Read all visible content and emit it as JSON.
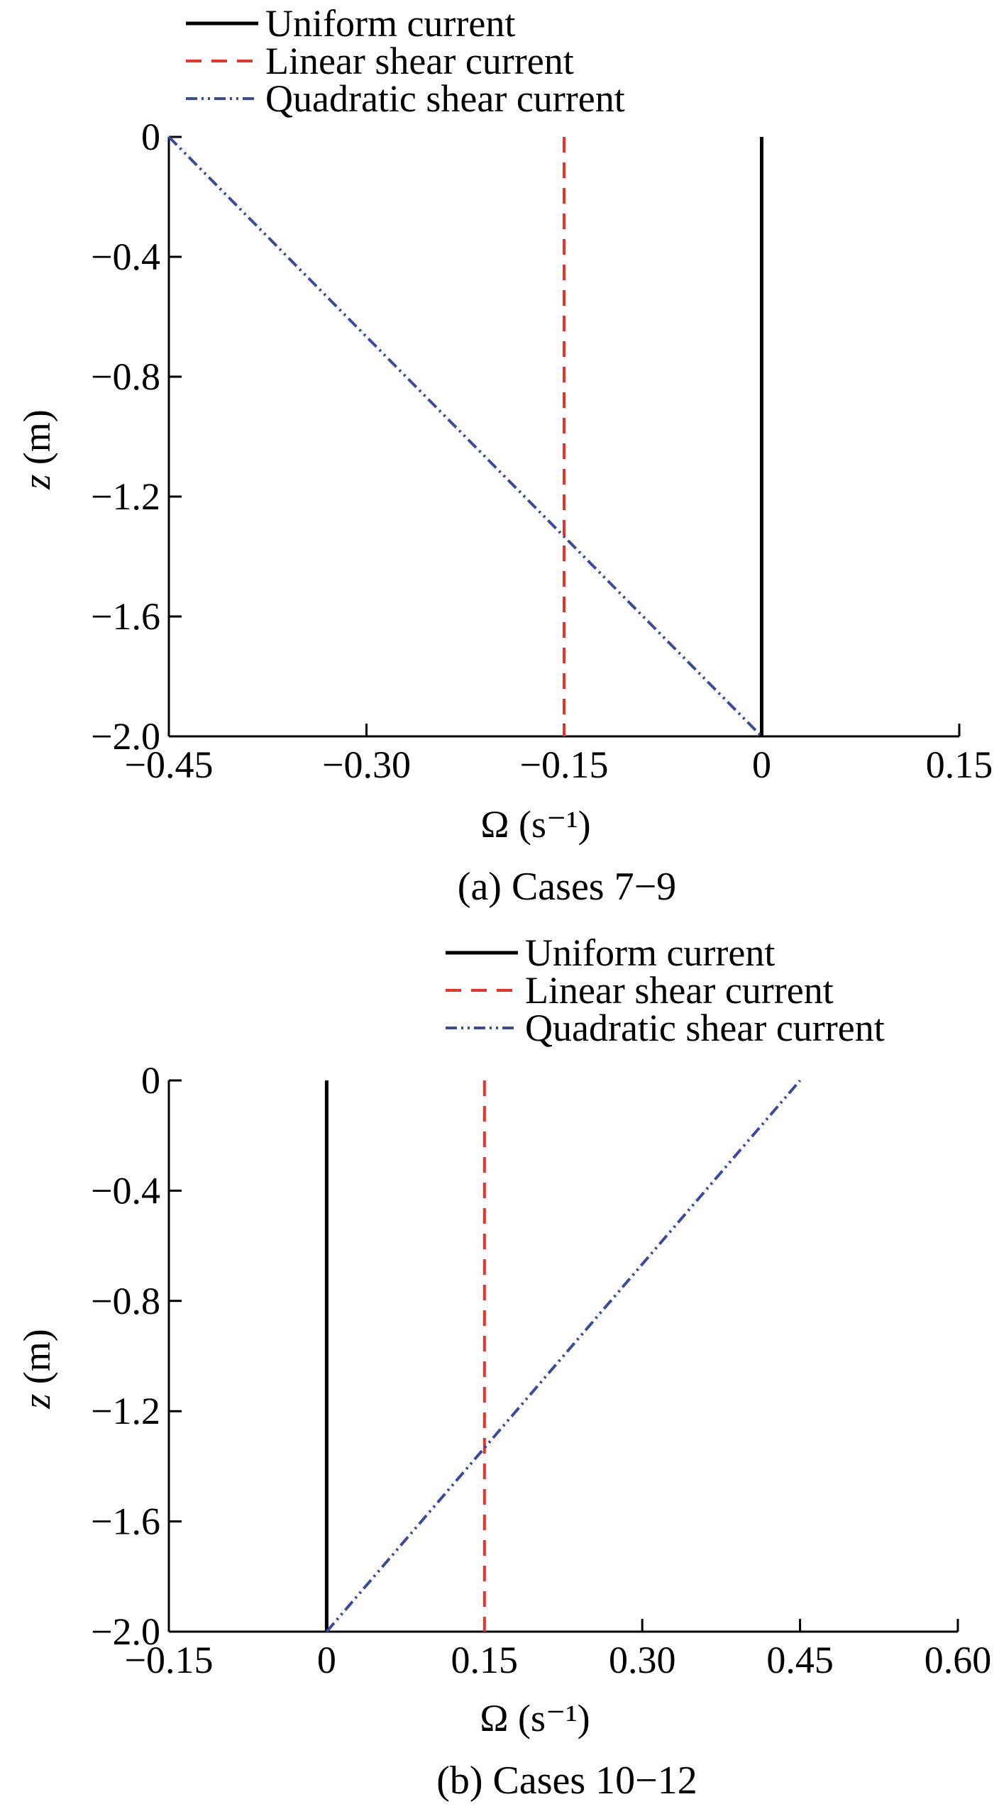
{
  "chart_data": [
    {
      "type": "line",
      "caption": "(a) Cases 7−9",
      "xlabel": "Ω (s⁻¹)",
      "ylabel_var": "z",
      "ylabel_unit": " (m)",
      "xlim": [
        -0.45,
        0.15
      ],
      "ylim": [
        -2.0,
        0
      ],
      "xticks": [
        -0.45,
        -0.3,
        -0.15,
        0,
        0.15
      ],
      "xtick_labels": [
        "−0.45",
        "−0.30",
        "−0.15",
        "0",
        "0.15"
      ],
      "yticks": [
        0,
        -0.4,
        -0.8,
        -1.2,
        -1.6,
        -2.0
      ],
      "ytick_labels": [
        "0",
        "−0.4",
        "−0.8",
        "−1.2",
        "−1.6",
        "−2.0"
      ],
      "grid": false,
      "legend_position": "top",
      "series": [
        {
          "name": "Uniform current",
          "color": "#000000",
          "dash": "solid",
          "x": [
            0,
            0
          ],
          "y": [
            0,
            -2.0
          ]
        },
        {
          "name": "Linear shear current",
          "color": "#e8332a",
          "dash": "dashed",
          "x": [
            -0.15,
            -0.15
          ],
          "y": [
            0,
            -2.0
          ]
        },
        {
          "name": "Quadratic shear current",
          "color": "#3b4a9a",
          "dash": "dashdotdot",
          "x": [
            -0.45,
            0
          ],
          "y": [
            0,
            -2.0
          ]
        }
      ]
    },
    {
      "type": "line",
      "caption": "(b) Cases 10−12",
      "xlabel": "Ω (s⁻¹)",
      "ylabel_var": "z",
      "ylabel_unit": " (m)",
      "xlim": [
        -0.15,
        0.6
      ],
      "ylim": [
        -2.0,
        0
      ],
      "xticks": [
        -0.15,
        0,
        0.15,
        0.3,
        0.45,
        0.6
      ],
      "xtick_labels": [
        "−0.15",
        "0",
        "0.15",
        "0.30",
        "0.45",
        "0.60"
      ],
      "yticks": [
        0,
        -0.4,
        -0.8,
        -1.2,
        -1.6,
        -2.0
      ],
      "ytick_labels": [
        "0",
        "−0.4",
        "−0.8",
        "−1.2",
        "−1.6",
        "−2.0"
      ],
      "grid": false,
      "legend_position": "top-right",
      "series": [
        {
          "name": "Uniform current",
          "color": "#000000",
          "dash": "solid",
          "x": [
            0,
            0
          ],
          "y": [
            0,
            -2.0
          ]
        },
        {
          "name": "Linear shear current",
          "color": "#e8332a",
          "dash": "dashed",
          "x": [
            0.15,
            0.15
          ],
          "y": [
            0,
            -2.0
          ]
        },
        {
          "name": "Quadratic shear current",
          "color": "#3b4a9a",
          "dash": "dashdotdot",
          "x": [
            0,
            0.45
          ],
          "y": [
            -2.0,
            0
          ]
        }
      ]
    }
  ]
}
